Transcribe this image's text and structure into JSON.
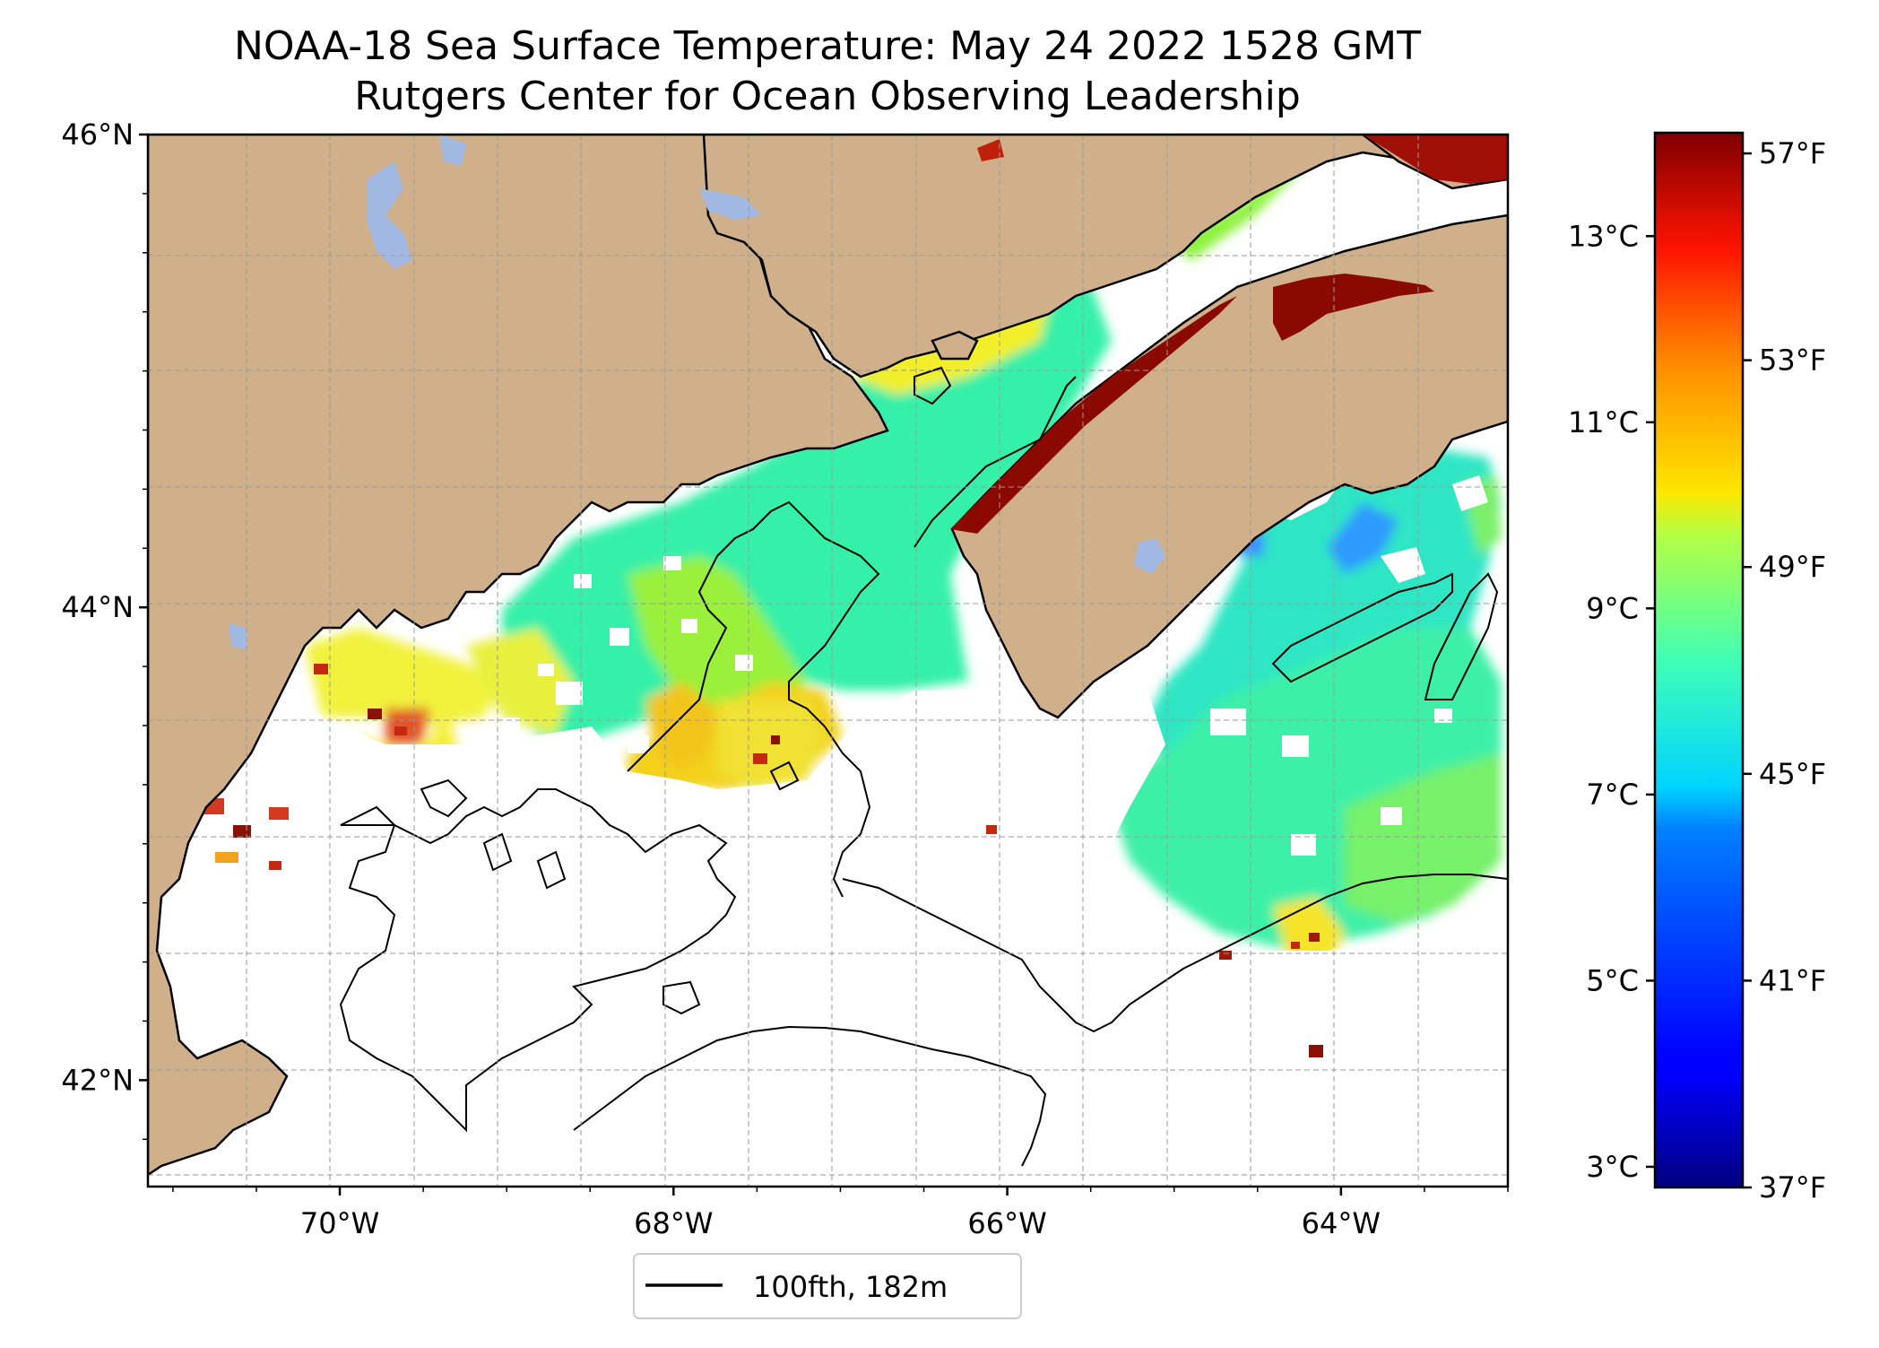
{
  "title_line1": "NOAA-18 Sea Surface Temperature: May 24 2022 1528 GMT",
  "title_line2": "Rutgers Center for Ocean Observing Leadership",
  "colors": {
    "land": "#cfb08a",
    "lakes": "#a1b8e2",
    "no_data": "#ffffff"
  },
  "chart_data": {
    "type": "heatmap",
    "xlim": [
      -71.15,
      -63.0
    ],
    "ylim": [
      41.55,
      46.0
    ],
    "x_ticks": [
      {
        "value": -70,
        "label": "70°W"
      },
      {
        "value": -68,
        "label": "68°W"
      },
      {
        "value": -66,
        "label": "66°W"
      },
      {
        "value": -64,
        "label": "64°W"
      }
    ],
    "y_ticks": [
      {
        "value": 46,
        "label": "46°N"
      },
      {
        "value": 44,
        "label": "44°N"
      },
      {
        "value": 42,
        "label": "42°N"
      }
    ],
    "grid": true,
    "colormap": "jet",
    "colorbar": {
      "celsius_ticks": [
        {
          "value": 3,
          "label": "3°C"
        },
        {
          "value": 5,
          "label": "5°C"
        },
        {
          "value": 7,
          "label": "7°C"
        },
        {
          "value": 9,
          "label": "9°C"
        },
        {
          "value": 11,
          "label": "11°C"
        },
        {
          "value": 13,
          "label": "13°C"
        }
      ],
      "fahrenheit_ticks": [
        {
          "value": 37,
          "label": "37°F"
        },
        {
          "value": 41,
          "label": "41°F"
        },
        {
          "value": 45,
          "label": "45°F"
        },
        {
          "value": 49,
          "label": "49°F"
        },
        {
          "value": 53,
          "label": "53°F"
        },
        {
          "value": 57,
          "label": "57°F"
        }
      ],
      "range_f": [
        37,
        57.4
      ]
    },
    "legend": {
      "label": "100fth, 182m",
      "placement": "bottom-center"
    }
  }
}
